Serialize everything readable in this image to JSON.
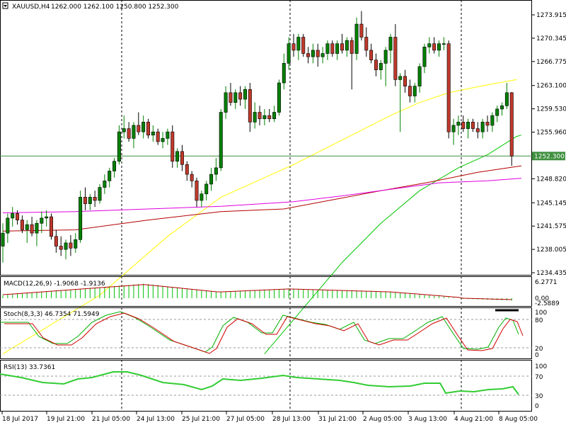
{
  "window": {
    "title_symbol": "XAUUSD,H4",
    "ohlc": "1262.000 1262.100 1250.800 1252.300",
    "price_tag": "1252.300"
  },
  "colors": {
    "background": "#ffffff",
    "grid_dash": "#000000",
    "candle_bull": "#008000",
    "candle_bear": "#c0392b",
    "ma_fast": "#ffff00",
    "ma_mid": "#00c800",
    "ma_slow": "#b40000",
    "ma_long": "#e000e0",
    "price_line": "#3f8f3f",
    "macd_hist": "#00c000",
    "macd_signal": "#b40000",
    "stoch_main": "#00b000",
    "stoch_signal": "#d00000",
    "rsi": "#33cc33"
  },
  "price_axis": {
    "labels": [
      "1273.915",
      "1270.345",
      "1266.775",
      "1263.100",
      "1259.530",
      "1255.960",
      "1252.300",
      "1248.820",
      "1245.145",
      "1241.575",
      "1238.005",
      "1234.435"
    ]
  },
  "macd": {
    "label": "MACD(12,26,9) -1.9068 -1.9136",
    "axis_labels": [
      "6.2771",
      "0.00",
      "-2.5889"
    ]
  },
  "stoch": {
    "label": "Stoch(8,3,3) 46.7354 71.5949",
    "axis_labels": [
      "100",
      "80",
      "20",
      "0"
    ]
  },
  "rsi": {
    "label": "RSI(13) 33.7361",
    "axis_labels": [
      "100",
      "70",
      "30",
      "0"
    ]
  },
  "time_axis": {
    "labels": [
      "18 Jul 2017",
      "19 Jul 21:00",
      "21 Jul 05:00",
      "24 Jul 13:00",
      "25 Jul 21:00",
      "27 Jul 05:00",
      "28 Jul 13:00",
      "31 Jul 21:00",
      "2 Aug 05:00",
      "3 Aug 13:00",
      "4 Aug 21:00",
      "8 Aug 05:00"
    ]
  },
  "chart_data": {
    "type": "candlestick",
    "symbol": "XAUUSD",
    "timeframe": "H4",
    "ylim": [
      1234.435,
      1275.5
    ],
    "candles": [
      {
        "o": 1238.5,
        "h": 1242.0,
        "l": 1236.0,
        "c": 1240.5
      },
      {
        "o": 1240.5,
        "h": 1243.5,
        "l": 1239.0,
        "c": 1242.8
      },
      {
        "o": 1242.8,
        "h": 1244.5,
        "l": 1241.5,
        "c": 1243.5
      },
      {
        "o": 1243.5,
        "h": 1244.0,
        "l": 1241.8,
        "c": 1242.5
      },
      {
        "o": 1242.5,
        "h": 1243.2,
        "l": 1240.5,
        "c": 1241.0
      },
      {
        "o": 1241.0,
        "h": 1242.5,
        "l": 1239.0,
        "c": 1241.8
      },
      {
        "o": 1241.8,
        "h": 1243.0,
        "l": 1240.0,
        "c": 1240.5
      },
      {
        "o": 1240.5,
        "h": 1242.5,
        "l": 1238.5,
        "c": 1242.0
      },
      {
        "o": 1242.0,
        "h": 1243.8,
        "l": 1240.5,
        "c": 1242.8
      },
      {
        "o": 1242.8,
        "h": 1244.0,
        "l": 1241.5,
        "c": 1243.0
      },
      {
        "o": 1243.0,
        "h": 1243.5,
        "l": 1239.5,
        "c": 1240.0
      },
      {
        "o": 1240.0,
        "h": 1241.0,
        "l": 1237.5,
        "c": 1238.5
      },
      {
        "o": 1238.5,
        "h": 1240.0,
        "l": 1237.0,
        "c": 1238.0
      },
      {
        "o": 1238.0,
        "h": 1239.5,
        "l": 1236.5,
        "c": 1239.0
      },
      {
        "o": 1239.0,
        "h": 1240.2,
        "l": 1237.0,
        "c": 1238.2
      },
      {
        "o": 1238.2,
        "h": 1240.5,
        "l": 1237.5,
        "c": 1239.5
      },
      {
        "o": 1239.5,
        "h": 1247.0,
        "l": 1239.0,
        "c": 1246.0
      },
      {
        "o": 1246.0,
        "h": 1247.5,
        "l": 1244.0,
        "c": 1245.0
      },
      {
        "o": 1245.0,
        "h": 1246.5,
        "l": 1244.0,
        "c": 1246.0
      },
      {
        "o": 1246.0,
        "h": 1247.0,
        "l": 1244.5,
        "c": 1245.5
      },
      {
        "o": 1245.5,
        "h": 1248.0,
        "l": 1245.0,
        "c": 1247.5
      },
      {
        "o": 1247.5,
        "h": 1249.5,
        "l": 1246.5,
        "c": 1248.5
      },
      {
        "o": 1248.5,
        "h": 1250.5,
        "l": 1247.5,
        "c": 1250.0
      },
      {
        "o": 1250.0,
        "h": 1252.0,
        "l": 1249.0,
        "c": 1251.5
      },
      {
        "o": 1251.5,
        "h": 1257.0,
        "l": 1251.0,
        "c": 1256.0
      },
      {
        "o": 1256.0,
        "h": 1258.5,
        "l": 1255.0,
        "c": 1256.5
      },
      {
        "o": 1256.5,
        "h": 1257.5,
        "l": 1254.5,
        "c": 1255.0
      },
      {
        "o": 1255.0,
        "h": 1257.5,
        "l": 1253.5,
        "c": 1257.0
      },
      {
        "o": 1257.0,
        "h": 1259.0,
        "l": 1255.5,
        "c": 1256.0
      },
      {
        "o": 1256.0,
        "h": 1258.5,
        "l": 1255.0,
        "c": 1257.5
      },
      {
        "o": 1257.5,
        "h": 1258.0,
        "l": 1255.0,
        "c": 1255.5
      },
      {
        "o": 1255.5,
        "h": 1257.0,
        "l": 1254.5,
        "c": 1256.0
      },
      {
        "o": 1256.0,
        "h": 1256.5,
        "l": 1254.0,
        "c": 1254.5
      },
      {
        "o": 1254.5,
        "h": 1256.0,
        "l": 1253.5,
        "c": 1255.0
      },
      {
        "o": 1255.0,
        "h": 1256.5,
        "l": 1254.0,
        "c": 1256.0
      },
      {
        "o": 1256.0,
        "h": 1257.0,
        "l": 1250.5,
        "c": 1251.5
      },
      {
        "o": 1251.5,
        "h": 1253.5,
        "l": 1250.5,
        "c": 1253.0
      },
      {
        "o": 1253.0,
        "h": 1254.0,
        "l": 1250.0,
        "c": 1251.0
      },
      {
        "o": 1251.0,
        "h": 1251.5,
        "l": 1248.5,
        "c": 1249.5
      },
      {
        "o": 1249.5,
        "h": 1250.0,
        "l": 1247.5,
        "c": 1248.5
      },
      {
        "o": 1248.5,
        "h": 1249.0,
        "l": 1244.5,
        "c": 1245.5
      },
      {
        "o": 1245.5,
        "h": 1247.0,
        "l": 1244.5,
        "c": 1246.5
      },
      {
        "o": 1246.5,
        "h": 1248.5,
        "l": 1245.5,
        "c": 1248.0
      },
      {
        "o": 1248.0,
        "h": 1250.5,
        "l": 1247.0,
        "c": 1249.5
      },
      {
        "o": 1249.5,
        "h": 1252.0,
        "l": 1248.5,
        "c": 1250.5
      },
      {
        "o": 1250.5,
        "h": 1259.5,
        "l": 1250.0,
        "c": 1259.0
      },
      {
        "o": 1259.0,
        "h": 1263.0,
        "l": 1258.0,
        "c": 1262.0
      },
      {
        "o": 1262.0,
        "h": 1263.5,
        "l": 1260.0,
        "c": 1260.5
      },
      {
        "o": 1260.5,
        "h": 1262.5,
        "l": 1259.5,
        "c": 1262.0
      },
      {
        "o": 1262.0,
        "h": 1263.0,
        "l": 1260.0,
        "c": 1261.0
      },
      {
        "o": 1261.0,
        "h": 1263.0,
        "l": 1259.5,
        "c": 1262.5
      },
      {
        "o": 1262.5,
        "h": 1263.5,
        "l": 1256.0,
        "c": 1257.5
      },
      {
        "o": 1257.5,
        "h": 1260.5,
        "l": 1256.5,
        "c": 1259.0
      },
      {
        "o": 1259.0,
        "h": 1260.0,
        "l": 1257.0,
        "c": 1258.0
      },
      {
        "o": 1258.0,
        "h": 1259.5,
        "l": 1257.0,
        "c": 1258.5
      },
      {
        "o": 1258.5,
        "h": 1259.5,
        "l": 1257.5,
        "c": 1258.0
      },
      {
        "o": 1258.0,
        "h": 1260.0,
        "l": 1257.5,
        "c": 1259.0
      },
      {
        "o": 1259.0,
        "h": 1264.0,
        "l": 1258.5,
        "c": 1263.5
      },
      {
        "o": 1263.5,
        "h": 1268.0,
        "l": 1262.5,
        "c": 1266.5
      },
      {
        "o": 1266.5,
        "h": 1270.5,
        "l": 1265.5,
        "c": 1269.5
      },
      {
        "o": 1269.5,
        "h": 1271.0,
        "l": 1267.5,
        "c": 1268.5
      },
      {
        "o": 1268.5,
        "h": 1271.0,
        "l": 1267.0,
        "c": 1270.5
      },
      {
        "o": 1270.5,
        "h": 1271.0,
        "l": 1267.5,
        "c": 1268.0
      },
      {
        "o": 1268.0,
        "h": 1269.0,
        "l": 1266.5,
        "c": 1267.5
      },
      {
        "o": 1267.5,
        "h": 1269.5,
        "l": 1266.5,
        "c": 1268.5
      },
      {
        "o": 1268.5,
        "h": 1269.5,
        "l": 1266.0,
        "c": 1267.5
      },
      {
        "o": 1267.5,
        "h": 1269.0,
        "l": 1266.5,
        "c": 1268.0
      },
      {
        "o": 1268.0,
        "h": 1270.0,
        "l": 1267.0,
        "c": 1269.5
      },
      {
        "o": 1269.5,
        "h": 1270.0,
        "l": 1267.5,
        "c": 1268.0
      },
      {
        "o": 1268.0,
        "h": 1270.0,
        "l": 1267.0,
        "c": 1269.5
      },
      {
        "o": 1269.5,
        "h": 1271.0,
        "l": 1268.0,
        "c": 1268.5
      },
      {
        "o": 1268.5,
        "h": 1270.5,
        "l": 1267.5,
        "c": 1270.0
      },
      {
        "o": 1270.0,
        "h": 1270.5,
        "l": 1262.5,
        "c": 1268.0
      },
      {
        "o": 1268.0,
        "h": 1273.5,
        "l": 1267.0,
        "c": 1272.5
      },
      {
        "o": 1272.5,
        "h": 1274.5,
        "l": 1270.0,
        "c": 1270.5
      },
      {
        "o": 1270.5,
        "h": 1272.0,
        "l": 1267.5,
        "c": 1268.5
      },
      {
        "o": 1268.5,
        "h": 1269.5,
        "l": 1266.5,
        "c": 1267.0
      },
      {
        "o": 1267.0,
        "h": 1268.0,
        "l": 1264.5,
        "c": 1265.5
      },
      {
        "o": 1265.5,
        "h": 1267.0,
        "l": 1264.0,
        "c": 1266.5
      },
      {
        "o": 1266.5,
        "h": 1269.0,
        "l": 1263.0,
        "c": 1268.5
      },
      {
        "o": 1268.5,
        "h": 1271.0,
        "l": 1266.5,
        "c": 1270.5
      },
      {
        "o": 1270.5,
        "h": 1272.5,
        "l": 1263.0,
        "c": 1264.0
      },
      {
        "o": 1264.0,
        "h": 1265.0,
        "l": 1256.0,
        "c": 1264.5
      },
      {
        "o": 1264.5,
        "h": 1265.5,
        "l": 1262.0,
        "c": 1263.0
      },
      {
        "o": 1263.0,
        "h": 1264.0,
        "l": 1260.5,
        "c": 1261.5
      },
      {
        "o": 1261.5,
        "h": 1263.5,
        "l": 1260.5,
        "c": 1263.0
      },
      {
        "o": 1263.0,
        "h": 1266.5,
        "l": 1262.0,
        "c": 1266.0
      },
      {
        "o": 1266.0,
        "h": 1269.5,
        "l": 1265.0,
        "c": 1269.0
      },
      {
        "o": 1269.0,
        "h": 1270.5,
        "l": 1268.0,
        "c": 1269.5
      },
      {
        "o": 1269.5,
        "h": 1270.5,
        "l": 1268.0,
        "c": 1268.5
      },
      {
        "o": 1268.5,
        "h": 1270.0,
        "l": 1267.5,
        "c": 1269.5
      },
      {
        "o": 1269.5,
        "h": 1270.5,
        "l": 1268.5,
        "c": 1269.5
      },
      {
        "o": 1269.5,
        "h": 1270.0,
        "l": 1255.0,
        "c": 1256.0
      },
      {
        "o": 1256.0,
        "h": 1258.0,
        "l": 1254.0,
        "c": 1257.0
      },
      {
        "o": 1257.0,
        "h": 1258.5,
        "l": 1255.5,
        "c": 1257.5
      },
      {
        "o": 1257.5,
        "h": 1258.5,
        "l": 1256.0,
        "c": 1256.5
      },
      {
        "o": 1256.5,
        "h": 1258.0,
        "l": 1255.0,
        "c": 1257.5
      },
      {
        "o": 1257.5,
        "h": 1258.0,
        "l": 1256.0,
        "c": 1256.5
      },
      {
        "o": 1256.5,
        "h": 1257.5,
        "l": 1255.0,
        "c": 1256.0
      },
      {
        "o": 1256.0,
        "h": 1258.0,
        "l": 1255.0,
        "c": 1257.5
      },
      {
        "o": 1257.5,
        "h": 1258.5,
        "l": 1256.0,
        "c": 1257.0
      },
      {
        "o": 1257.0,
        "h": 1259.0,
        "l": 1256.0,
        "c": 1258.5
      },
      {
        "o": 1258.5,
        "h": 1260.0,
        "l": 1257.5,
        "c": 1259.5
      },
      {
        "o": 1259.5,
        "h": 1260.5,
        "l": 1258.5,
        "c": 1260.0
      },
      {
        "o": 1260.0,
        "h": 1263.5,
        "l": 1259.5,
        "c": 1262.0
      },
      {
        "o": 1262.0,
        "h": 1262.1,
        "l": 1250.8,
        "c": 1252.3
      }
    ],
    "moving_averages": [
      {
        "name": "ma_fast",
        "color": "#ffff00",
        "points": [
          [
            0,
            1222
          ],
          [
            20,
            1231
          ],
          [
            34,
            1240
          ],
          [
            45,
            1246
          ],
          [
            60,
            1251
          ],
          [
            72,
            1255.5
          ],
          [
            80,
            1258.5
          ],
          [
            86,
            1260.5
          ],
          [
            92,
            1262
          ],
          [
            100,
            1263.2
          ],
          [
            106,
            1264
          ]
        ]
      },
      {
        "name": "ma_mid",
        "color": "#00c800",
        "points": [
          [
            54,
            1222
          ],
          [
            62,
            1229
          ],
          [
            70,
            1236
          ],
          [
            78,
            1242
          ],
          [
            86,
            1247
          ],
          [
            94,
            1250.5
          ],
          [
            100,
            1252.5
          ],
          [
            106,
            1255.3
          ],
          [
            107,
            1255.5
          ]
        ]
      },
      {
        "name": "ma_slow",
        "color": "#b40000",
        "points": [
          [
            0,
            1240.8
          ],
          [
            15,
            1241
          ],
          [
            30,
            1242.5
          ],
          [
            45,
            1243.8
          ],
          [
            58,
            1244.2
          ],
          [
            68,
            1245.6
          ],
          [
            78,
            1247
          ],
          [
            88,
            1248.3
          ],
          [
            98,
            1249.8
          ],
          [
            107,
            1250.8
          ]
        ]
      },
      {
        "name": "ma_long",
        "color": "#e000e0",
        "points": [
          [
            0,
            1243.6
          ],
          [
            15,
            1243.8
          ],
          [
            30,
            1244.2
          ],
          [
            45,
            1244.6
          ],
          [
            60,
            1245.3
          ],
          [
            70,
            1246.2
          ],
          [
            80,
            1247.2
          ],
          [
            90,
            1248.2
          ],
          [
            100,
            1248.5
          ],
          [
            107,
            1248.9
          ]
        ]
      }
    ],
    "current_price": 1252.3
  }
}
